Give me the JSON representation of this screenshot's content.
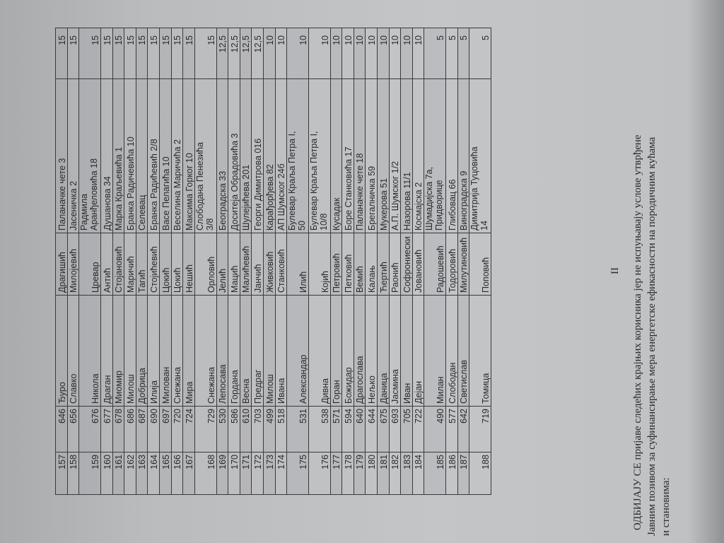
{
  "table": {
    "rows": [
      [
        "157",
        "646",
        "Ђуро",
        "Драгишић",
        "Паланачке чете 3",
        "15"
      ],
      [
        "158",
        "656",
        "Славко",
        "Милојевић",
        "Јасеничка 2",
        "15"
      ],
      [
        "159",
        "676",
        "Никола",
        "Цревар",
        "Радмила\nАранђеловића 18",
        "15"
      ],
      [
        "160",
        "677",
        "Драган",
        "Антић",
        "Душанова 34",
        "15"
      ],
      [
        "161",
        "678",
        "Миомир",
        "Стојановић",
        "Марка Краљевића 1",
        "15"
      ],
      [
        "162",
        "686",
        "Милош",
        "Маричић",
        "Бранка Радичевића 10",
        "15"
      ],
      [
        "163",
        "687",
        "Добрица",
        "Тагић",
        "Селевац",
        "15"
      ],
      [
        "164",
        "690",
        "Илија",
        "Стојићевић",
        "Бранка Радићевић 2/8",
        "15"
      ],
      [
        "165",
        "697",
        "Милован",
        "Цокић",
        "Васе Пелагића 10",
        "15"
      ],
      [
        "166",
        "720",
        "Снежана",
        "Цокић",
        "Веселина Маричића 2",
        "15"
      ],
      [
        "167",
        "724",
        "Мира",
        "Нешић",
        "Максима Горког 10",
        "15"
      ],
      [
        "168",
        "729",
        "Снежана",
        "Орловић",
        "Слободана Пенезића\n3/8",
        "15"
      ],
      [
        "169",
        "530",
        "Лепосава",
        "Јелић",
        "Београдска 33",
        "12,5"
      ],
      [
        "170",
        "586",
        "Гордана",
        "Мацић",
        "Доситеја Обрадовића 3",
        "12,5"
      ],
      [
        "171",
        "610",
        "Весна",
        "Малићевић",
        "Шулејићева 201",
        "12,5"
      ],
      [
        "172",
        "703",
        "Предраг",
        "Јанчић",
        "Георги Димитрова 016",
        "12,5"
      ],
      [
        "173",
        "499",
        "Милош",
        "Живковић",
        "Карађорђева 82",
        "10"
      ],
      [
        "174",
        "518",
        "Ивана",
        "Станковић",
        "АП Шумског 24б",
        "10"
      ],
      [
        "175",
        "531",
        "Александар",
        "Илић",
        "Булевар Краља Петра I,\n50",
        "10"
      ],
      [
        "176",
        "538",
        "Дивна",
        "Којић",
        "Булевар Краља Петра I,\n10/8",
        "10"
      ],
      [
        "177",
        "571",
        "Горан",
        "Петровић",
        "Кусадак",
        "10"
      ],
      [
        "178",
        "594",
        "Божидар",
        "Петковић",
        "Боре Станковића 17",
        "10"
      ],
      [
        "179",
        "640",
        "Драгослава",
        "Вемић",
        "Паланачке чете 18",
        "10"
      ],
      [
        "180",
        "644",
        "Нељко",
        "Калањ",
        "Брегалничка 59",
        "10"
      ],
      [
        "181",
        "675",
        "Даница",
        "Ћертић",
        "Мукерова 51",
        "10"
      ],
      [
        "182",
        "693",
        "Јасмина",
        "Раонић",
        "А.П. Шумског 1/2",
        "10"
      ],
      [
        "183",
        "705",
        "Иван",
        "Софрониески",
        "Назорова 11/1",
        "10"
      ],
      [
        "184",
        "722",
        "Дејан",
        "Јовановић",
        "Космајска 2",
        "10"
      ],
      [
        "185",
        "490",
        "Милан",
        "Радошевић",
        "Шумадијска 7а,\nПридворице",
        "5"
      ],
      [
        "186",
        "577",
        "Слободан",
        "Тодоровић",
        "Глибовац 66",
        "5"
      ],
      [
        "187",
        "642",
        "Светислав",
        "Милутиновић",
        "Виноградска 9",
        "5"
      ],
      [
        "188",
        "719",
        "Томица",
        "Поповић",
        "Димитрија Туцовића\n14",
        "5"
      ]
    ]
  },
  "section": "II",
  "paragraph": [
    "ОДБИЈАЈУ СЕ пријаве следећих крајњих корисника јер не испуњавају услове утврђене",
    "Јавним позивом за суфинансирање мера енергетске ефикасности на породичним кућама",
    "и становима:"
  ]
}
